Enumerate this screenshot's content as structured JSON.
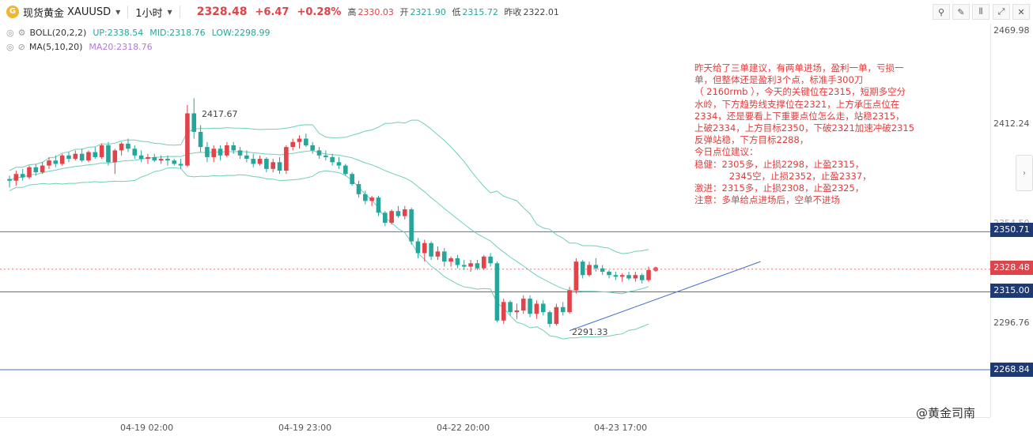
{
  "header": {
    "logo_glyph": "G",
    "instrument_name": "现货黄金",
    "symbol": "XAUUSD",
    "interval": "1小时",
    "last_price": "2328.48",
    "change": "+6.47",
    "change_pct": "+0.28%",
    "high_label": "高",
    "high": "2330.03",
    "open_label": "开",
    "open": "2321.90",
    "low_label": "低",
    "low": "2315.72",
    "prev_close_label": "昨收",
    "prev_close": "2322.01",
    "toolbar_glyphs": [
      "⚲",
      "✎",
      "⫴",
      "⤢",
      "✕"
    ]
  },
  "legend": {
    "boll_name": "BOLL(20,2,2)",
    "boll_up": "UP:2338.54",
    "boll_mid": "MID:2318.76",
    "boll_low": "LOW:2298.99",
    "ma_name": "MA(5,10,20)",
    "ma20": "MA20:2318.76",
    "icon_glyph": "◎"
  },
  "annotation": "昨天给了三单建议，有两单进场，盈利一单，亏损一\n单，但整体还是盈利3个点，标准手300刀\n（ 2160rmb ），今天的关键位在2315，短期多空分\n水岭，下方趋势线支撑位在2321，上方承压点位在\n2334，还是要看上下重要点位怎么走，站稳2315，\n上破2334，上方目标2350，下破2321加速冲破2315\n反弹站稳，下方目标2288，\n今日点位建议：\n稳健：2305多，止损2298，止盈2315，\n            2345空，止损2352，止盈2337，\n激进：2315多，止损2308，止盈2325，\n注意：多单给点进场后，空单不进场",
  "watermark": "@黄金司南",
  "scroll_glyph": "›",
  "colors": {
    "up": "#e04349",
    "down": "#26a69a",
    "boll": "#6fcfb8",
    "hline": "#4a6fd0",
    "trend": "#4a6fd0",
    "price_tag_bg": "#e04349",
    "level_tag_bg": "#1e3a74"
  },
  "chart_data": {
    "type": "candlestick",
    "price_ticks": [
      "2469.98",
      "2412.24",
      "2354.50",
      "2296.76"
    ],
    "time_ticks": [
      "04-19 02:00",
      "04-19 23:00",
      "04-22 20:00",
      "04-23 17:00"
    ],
    "horizontal_levels": [
      {
        "price": 2350.71,
        "label": "2350.71"
      },
      {
        "price": 2315.0,
        "label": "2315.00"
      },
      {
        "price": 2268.84,
        "label": "2268.84"
      }
    ],
    "current_price": {
      "price": 2328.48,
      "label": "2328.48"
    },
    "peak_label": {
      "price": 2417.67,
      "label": "2417.67"
    },
    "trough_label": {
      "price": 2291.33,
      "label": "2291.33"
    },
    "trendline": {
      "from": {
        "bar": 85,
        "price": 2292
      },
      "to": {
        "bar": 114,
        "price": 2333
      }
    },
    "candles": [
      [
        2382,
        2384,
        2377,
        2381
      ],
      [
        2381,
        2387,
        2378,
        2385
      ],
      [
        2385,
        2388,
        2381,
        2383
      ],
      [
        2383,
        2390,
        2382,
        2389
      ],
      [
        2389,
        2391,
        2384,
        2386
      ],
      [
        2386,
        2392,
        2385,
        2390
      ],
      [
        2390,
        2395,
        2388,
        2393
      ],
      [
        2393,
        2396,
        2389,
        2391
      ],
      [
        2391,
        2397,
        2390,
        2396
      ],
      [
        2396,
        2398,
        2392,
        2394
      ],
      [
        2394,
        2399,
        2393,
        2397
      ],
      [
        2397,
        2400,
        2392,
        2393
      ],
      [
        2393,
        2399,
        2392,
        2398
      ],
      [
        2398,
        2401,
        2394,
        2395
      ],
      [
        2395,
        2403,
        2394,
        2402
      ],
      [
        2402,
        2404,
        2390,
        2392
      ],
      [
        2392,
        2400,
        2385,
        2399
      ],
      [
        2399,
        2404,
        2396,
        2403
      ],
      [
        2403,
        2406,
        2398,
        2400
      ],
      [
        2400,
        2402,
        2394,
        2396
      ],
      [
        2396,
        2399,
        2392,
        2394
      ],
      [
        2394,
        2397,
        2391,
        2395
      ],
      [
        2395,
        2397,
        2392,
        2393
      ],
      [
        2393,
        2396,
        2391,
        2394
      ],
      [
        2394,
        2396,
        2390,
        2393
      ],
      [
        2393,
        2394,
        2390,
        2391
      ],
      [
        2391,
        2394,
        2388,
        2390
      ],
      [
        2390,
        2426,
        2389,
        2421
      ],
      [
        2421,
        2430,
        2406,
        2410
      ],
      [
        2410,
        2414,
        2398,
        2401
      ],
      [
        2401,
        2404,
        2392,
        2395
      ],
      [
        2395,
        2402,
        2392,
        2400
      ],
      [
        2400,
        2402,
        2393,
        2396
      ],
      [
        2396,
        2404,
        2395,
        2402
      ],
      [
        2402,
        2404,
        2397,
        2399
      ],
      [
        2399,
        2401,
        2394,
        2396
      ],
      [
        2396,
        2399,
        2392,
        2394
      ],
      [
        2394,
        2397,
        2389,
        2391
      ],
      [
        2391,
        2396,
        2390,
        2394
      ],
      [
        2394,
        2395,
        2386,
        2388
      ],
      [
        2388,
        2394,
        2386,
        2392
      ],
      [
        2392,
        2395,
        2385,
        2387
      ],
      [
        2387,
        2402,
        2385,
        2401
      ],
      [
        2401,
        2406,
        2399,
        2404
      ],
      [
        2404,
        2408,
        2400,
        2406
      ],
      [
        2406,
        2409,
        2401,
        2402
      ],
      [
        2402,
        2404,
        2397,
        2399
      ],
      [
        2399,
        2401,
        2394,
        2396
      ],
      [
        2396,
        2399,
        2393,
        2395
      ],
      [
        2395,
        2397,
        2390,
        2392
      ],
      [
        2392,
        2395,
        2388,
        2390
      ],
      [
        2390,
        2391,
        2384,
        2385
      ],
      [
        2385,
        2386,
        2378,
        2379
      ],
      [
        2379,
        2381,
        2371,
        2373
      ],
      [
        2373,
        2375,
        2367,
        2369
      ],
      [
        2369,
        2372,
        2366,
        2371
      ],
      [
        2371,
        2372,
        2360,
        2362
      ],
      [
        2362,
        2363,
        2354,
        2356
      ],
      [
        2356,
        2364,
        2355,
        2363
      ],
      [
        2363,
        2366,
        2359,
        2360
      ],
      [
        2360,
        2366,
        2358,
        2364
      ],
      [
        2364,
        2365,
        2343,
        2345
      ],
      [
        2345,
        2347,
        2335,
        2338
      ],
      [
        2338,
        2346,
        2333,
        2344
      ],
      [
        2344,
        2345,
        2334,
        2336
      ],
      [
        2336,
        2342,
        2334,
        2339
      ],
      [
        2339,
        2341,
        2330,
        2333
      ],
      [
        2333,
        2336,
        2330,
        2335
      ],
      [
        2335,
        2337,
        2329,
        2331
      ],
      [
        2331,
        2334,
        2328,
        2330
      ],
      [
        2330,
        2334,
        2327,
        2332
      ],
      [
        2332,
        2334,
        2328,
        2329
      ],
      [
        2329,
        2337,
        2328,
        2336
      ],
      [
        2336,
        2338,
        2330,
        2332
      ],
      [
        2332,
        2333,
        2297,
        2298
      ],
      [
        2298,
        2311,
        2296,
        2309
      ],
      [
        2309,
        2310,
        2301,
        2303
      ],
      [
        2303,
        2308,
        2299,
        2304
      ],
      [
        2304,
        2313,
        2302,
        2311
      ],
      [
        2311,
        2313,
        2300,
        2302
      ],
      [
        2302,
        2310,
        2299,
        2308
      ],
      [
        2308,
        2310,
        2301,
        2303
      ],
      [
        2303,
        2304,
        2294,
        2296
      ],
      [
        2296,
        2308,
        2295,
        2306
      ],
      [
        2306,
        2309,
        2301,
        2303
      ],
      [
        2303,
        2318,
        2302,
        2316
      ],
      [
        2316,
        2335,
        2314,
        2333
      ],
      [
        2333,
        2334,
        2323,
        2325
      ],
      [
        2325,
        2333,
        2324,
        2331
      ],
      [
        2331,
        2335,
        2327,
        2329
      ],
      [
        2329,
        2331,
        2325,
        2327
      ],
      [
        2327,
        2328,
        2323,
        2325
      ],
      [
        2325,
        2327,
        2322,
        2324
      ],
      [
        2324,
        2326,
        2321,
        2325
      ],
      [
        2325,
        2327,
        2322,
        2323
      ],
      [
        2323,
        2327,
        2321,
        2325
      ],
      [
        2325,
        2326,
        2320,
        2322
      ],
      [
        2322,
        2330,
        2321,
        2328
      ]
    ]
  }
}
